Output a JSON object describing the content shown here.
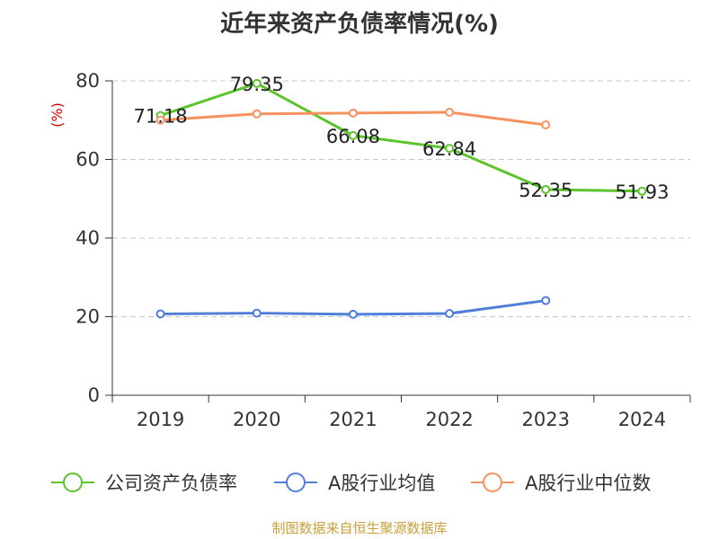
{
  "chart_data": {
    "type": "line",
    "title": "近年来资产负债率情况(%)",
    "ylabel": "(%)",
    "xlabel": "",
    "categories": [
      "2019",
      "2020",
      "2021",
      "2022",
      "2023",
      "2024"
    ],
    "ylim": [
      0,
      80
    ],
    "yticks": [
      0,
      20,
      40,
      60,
      80
    ],
    "grid": true,
    "legend_position": "bottom",
    "series": [
      {
        "name": "公司资产负债率",
        "color": "#5cc42b",
        "values": [
          71.18,
          79.35,
          66.08,
          62.84,
          52.35,
          51.93
        ],
        "labels": [
          "71.18",
          "79.35",
          "66.08",
          "62.84",
          "52.35",
          "51.93"
        ]
      },
      {
        "name": "A股行业均值",
        "color": "#4f7fd8",
        "values": [
          20.7,
          20.9,
          20.6,
          20.8,
          24.1,
          null
        ]
      },
      {
        "name": "A股行业中位数",
        "color": "#f5925e",
        "values": [
          70.0,
          71.6,
          71.8,
          72.0,
          68.8,
          null
        ]
      }
    ]
  },
  "source": "制图数据来自恒生聚源数据库"
}
